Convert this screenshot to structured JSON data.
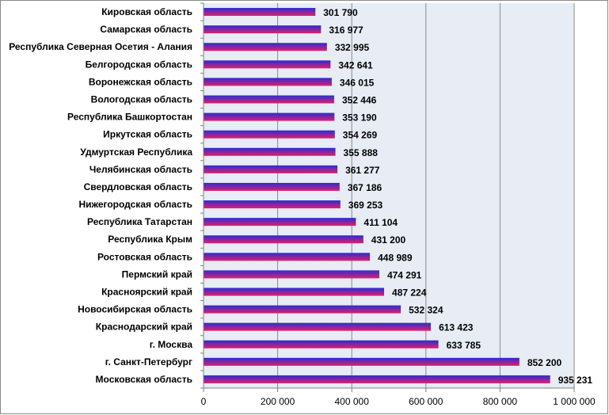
{
  "chart_data": {
    "type": "bar",
    "orientation": "horizontal",
    "categories": [
      "Кировская область",
      "Самарская область",
      "Республика Северная Осетия - Алания",
      "Белгородская область",
      "Воронежская область",
      "Вологодская область",
      "Республика Башкортостан",
      "Иркутская область",
      "Удмуртская Республика",
      "Челябинская область",
      "Свердловская область",
      "Нижегородская область",
      "Республика Татарстан",
      "Республика Крым",
      "Ростовская область",
      "Пермский край",
      "Красноярский край",
      "Новосибирская область",
      "Краснодарский край",
      "г. Москва",
      "г. Санкт-Петербург",
      "Московская область"
    ],
    "values": [
      301790,
      316977,
      332995,
      342641,
      346015,
      352446,
      353190,
      354269,
      355888,
      361277,
      367186,
      369253,
      411104,
      431200,
      448989,
      474291,
      487224,
      532324,
      613423,
      633785,
      852200,
      935231
    ],
    "value_labels": [
      "301 790",
      "316 977",
      "332 995",
      "342 641",
      "346 015",
      "352 446",
      "353 190",
      "354 269",
      "355 888",
      "361 277",
      "367 186",
      "369 253",
      "411 104",
      "431 200",
      "448 989",
      "474 291",
      "487 224",
      "532 324",
      "613 423",
      "633 785",
      "852 200",
      "935 231"
    ],
    "xlim": [
      0,
      1000000
    ],
    "x_ticks": [
      0,
      200000,
      400000,
      600000,
      800000,
      1000000
    ],
    "x_tick_labels": [
      "0",
      "200 000",
      "400 000",
      "600 000",
      "800 000",
      "1 000 000"
    ],
    "grid": true,
    "legend": "none",
    "colors": {
      "bar_top": "#2b2bd6",
      "bar_bottom": "#e0206a",
      "plot_background": "#e7ecf5",
      "gridline": "#8a8a8a",
      "axis": "#808080"
    }
  }
}
